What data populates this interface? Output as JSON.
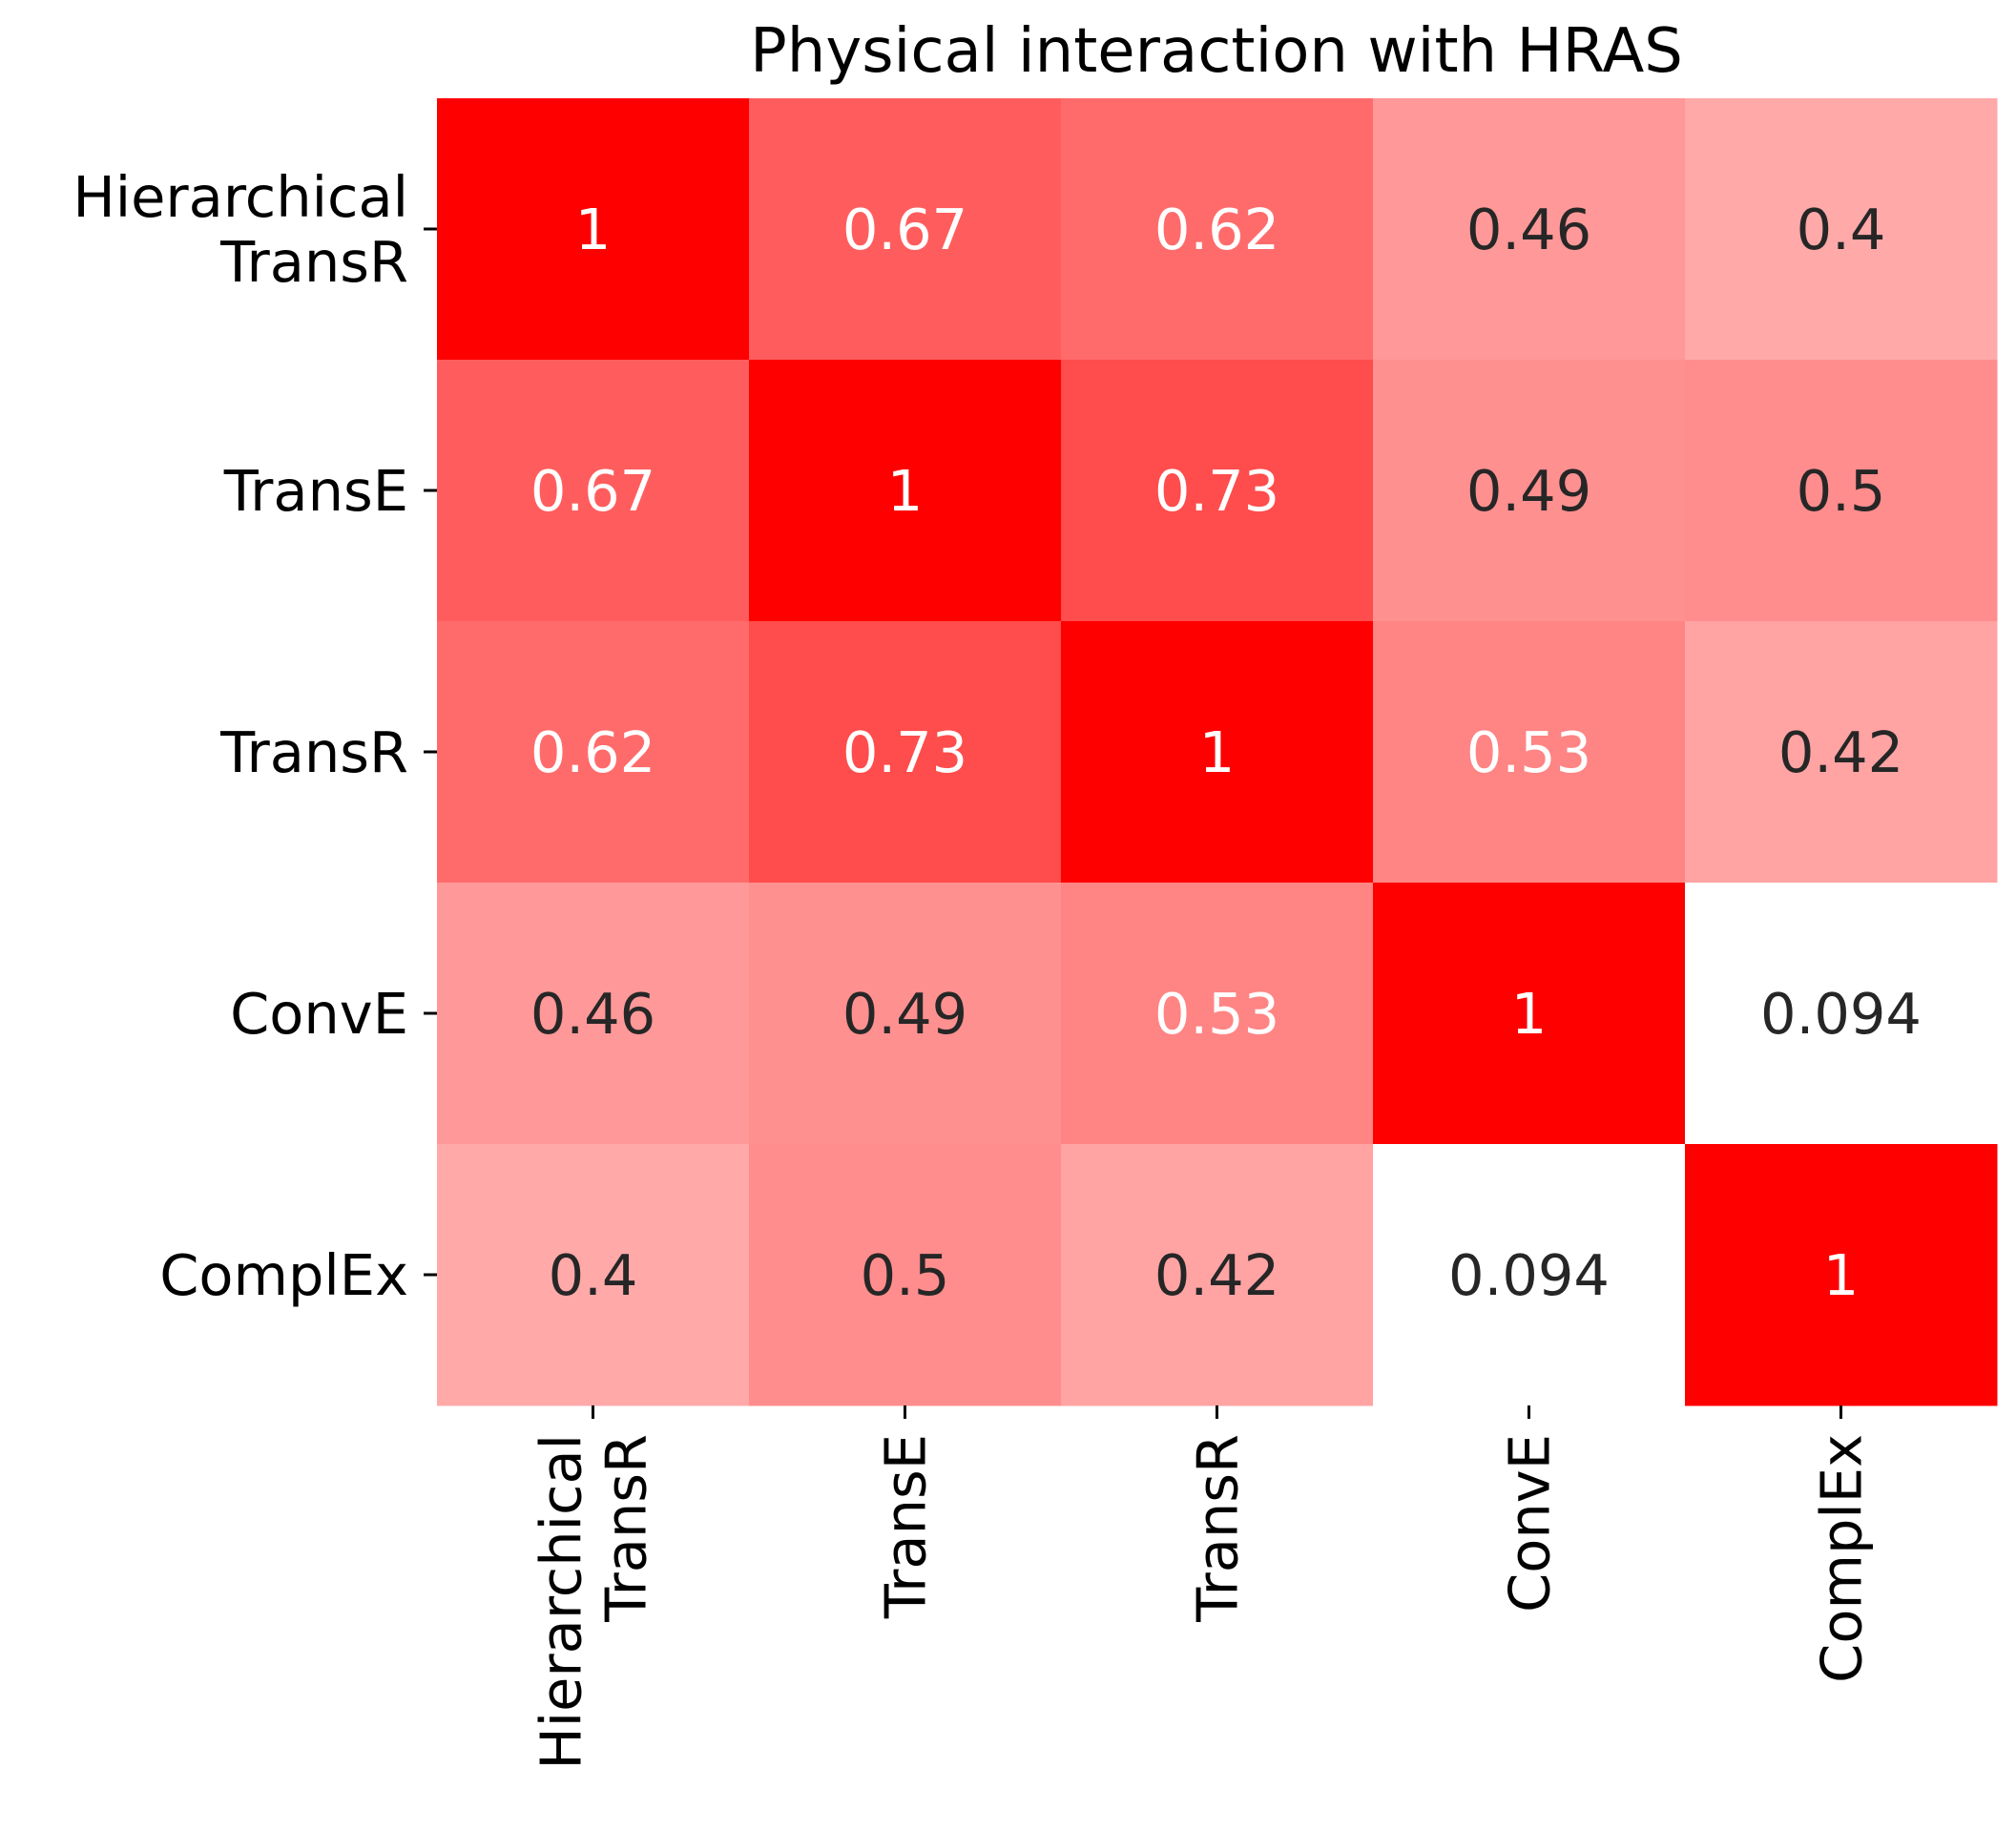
{
  "chart_data": {
    "type": "heatmap",
    "title": "Physical interaction with HRAS",
    "rows": [
      [
        "Hierarchical",
        "TransR"
      ],
      [
        "TransE"
      ],
      [
        "TransR"
      ],
      [
        "ConvE"
      ],
      [
        "ComplEx"
      ]
    ],
    "columns": [
      [
        "Hierarchical",
        "TransR"
      ],
      [
        "TransE"
      ],
      [
        "TransR"
      ],
      [
        "ConvE"
      ],
      [
        "ComplEx"
      ]
    ],
    "values": [
      [
        1,
        0.67,
        0.62,
        0.46,
        0.4
      ],
      [
        0.67,
        1,
        0.73,
        0.49,
        0.5
      ],
      [
        0.62,
        0.73,
        1,
        0.53,
        0.42
      ],
      [
        0.46,
        0.49,
        0.53,
        1,
        0.094
      ],
      [
        0.4,
        0.5,
        0.42,
        0.094,
        1
      ]
    ],
    "colormap": {
      "low": "#ffffff",
      "high": "#ff0000"
    },
    "colorbar": false,
    "annotations": true
  }
}
